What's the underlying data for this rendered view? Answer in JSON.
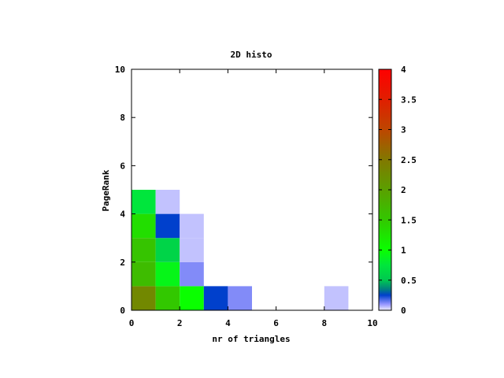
{
  "chart_data": {
    "type": "heatmap",
    "title": "2D histo",
    "xlabel": "nr of triangles",
    "ylabel": "PageRank",
    "xlim": [
      0,
      10
    ],
    "ylim": [
      0,
      10
    ],
    "x_ticks": [
      "0",
      "2",
      "4",
      "6",
      "8",
      "10"
    ],
    "y_ticks": [
      "0",
      "2",
      "4",
      "6",
      "8",
      "10"
    ],
    "bin_width": 1,
    "bin_height": 1,
    "cells": [
      {
        "x": 0,
        "y": 0,
        "value": 2.3
      },
      {
        "x": 1,
        "y": 0,
        "value": 1.5
      },
      {
        "x": 2,
        "y": 0,
        "value": 1
      },
      {
        "x": 3,
        "y": 0,
        "value": 0.25
      },
      {
        "x": 4,
        "y": 0,
        "value": 0.12
      },
      {
        "x": 8,
        "y": 0,
        "value": 0.05
      },
      {
        "x": 0,
        "y": 1,
        "value": 1.65
      },
      {
        "x": 1,
        "y": 1,
        "value": 0.9
      },
      {
        "x": 2,
        "y": 1,
        "value": 0.12
      },
      {
        "x": 0,
        "y": 2,
        "value": 1.55
      },
      {
        "x": 1,
        "y": 2,
        "value": 0.6
      },
      {
        "x": 2,
        "y": 2,
        "value": 0.05
      },
      {
        "x": 0,
        "y": 3,
        "value": 1.3
      },
      {
        "x": 1,
        "y": 3,
        "value": 0.25
      },
      {
        "x": 2,
        "y": 3,
        "value": 0.05
      },
      {
        "x": 0,
        "y": 4,
        "value": 0.75
      },
      {
        "x": 1,
        "y": 4,
        "value": 0.05
      }
    ],
    "colorbar": {
      "range": [
        0,
        4
      ],
      "tick_labels": [
        "0",
        "0.5",
        "1",
        "1.5",
        "2",
        "2.5",
        "3",
        "3.5",
        "4"
      ]
    },
    "grid": false
  }
}
